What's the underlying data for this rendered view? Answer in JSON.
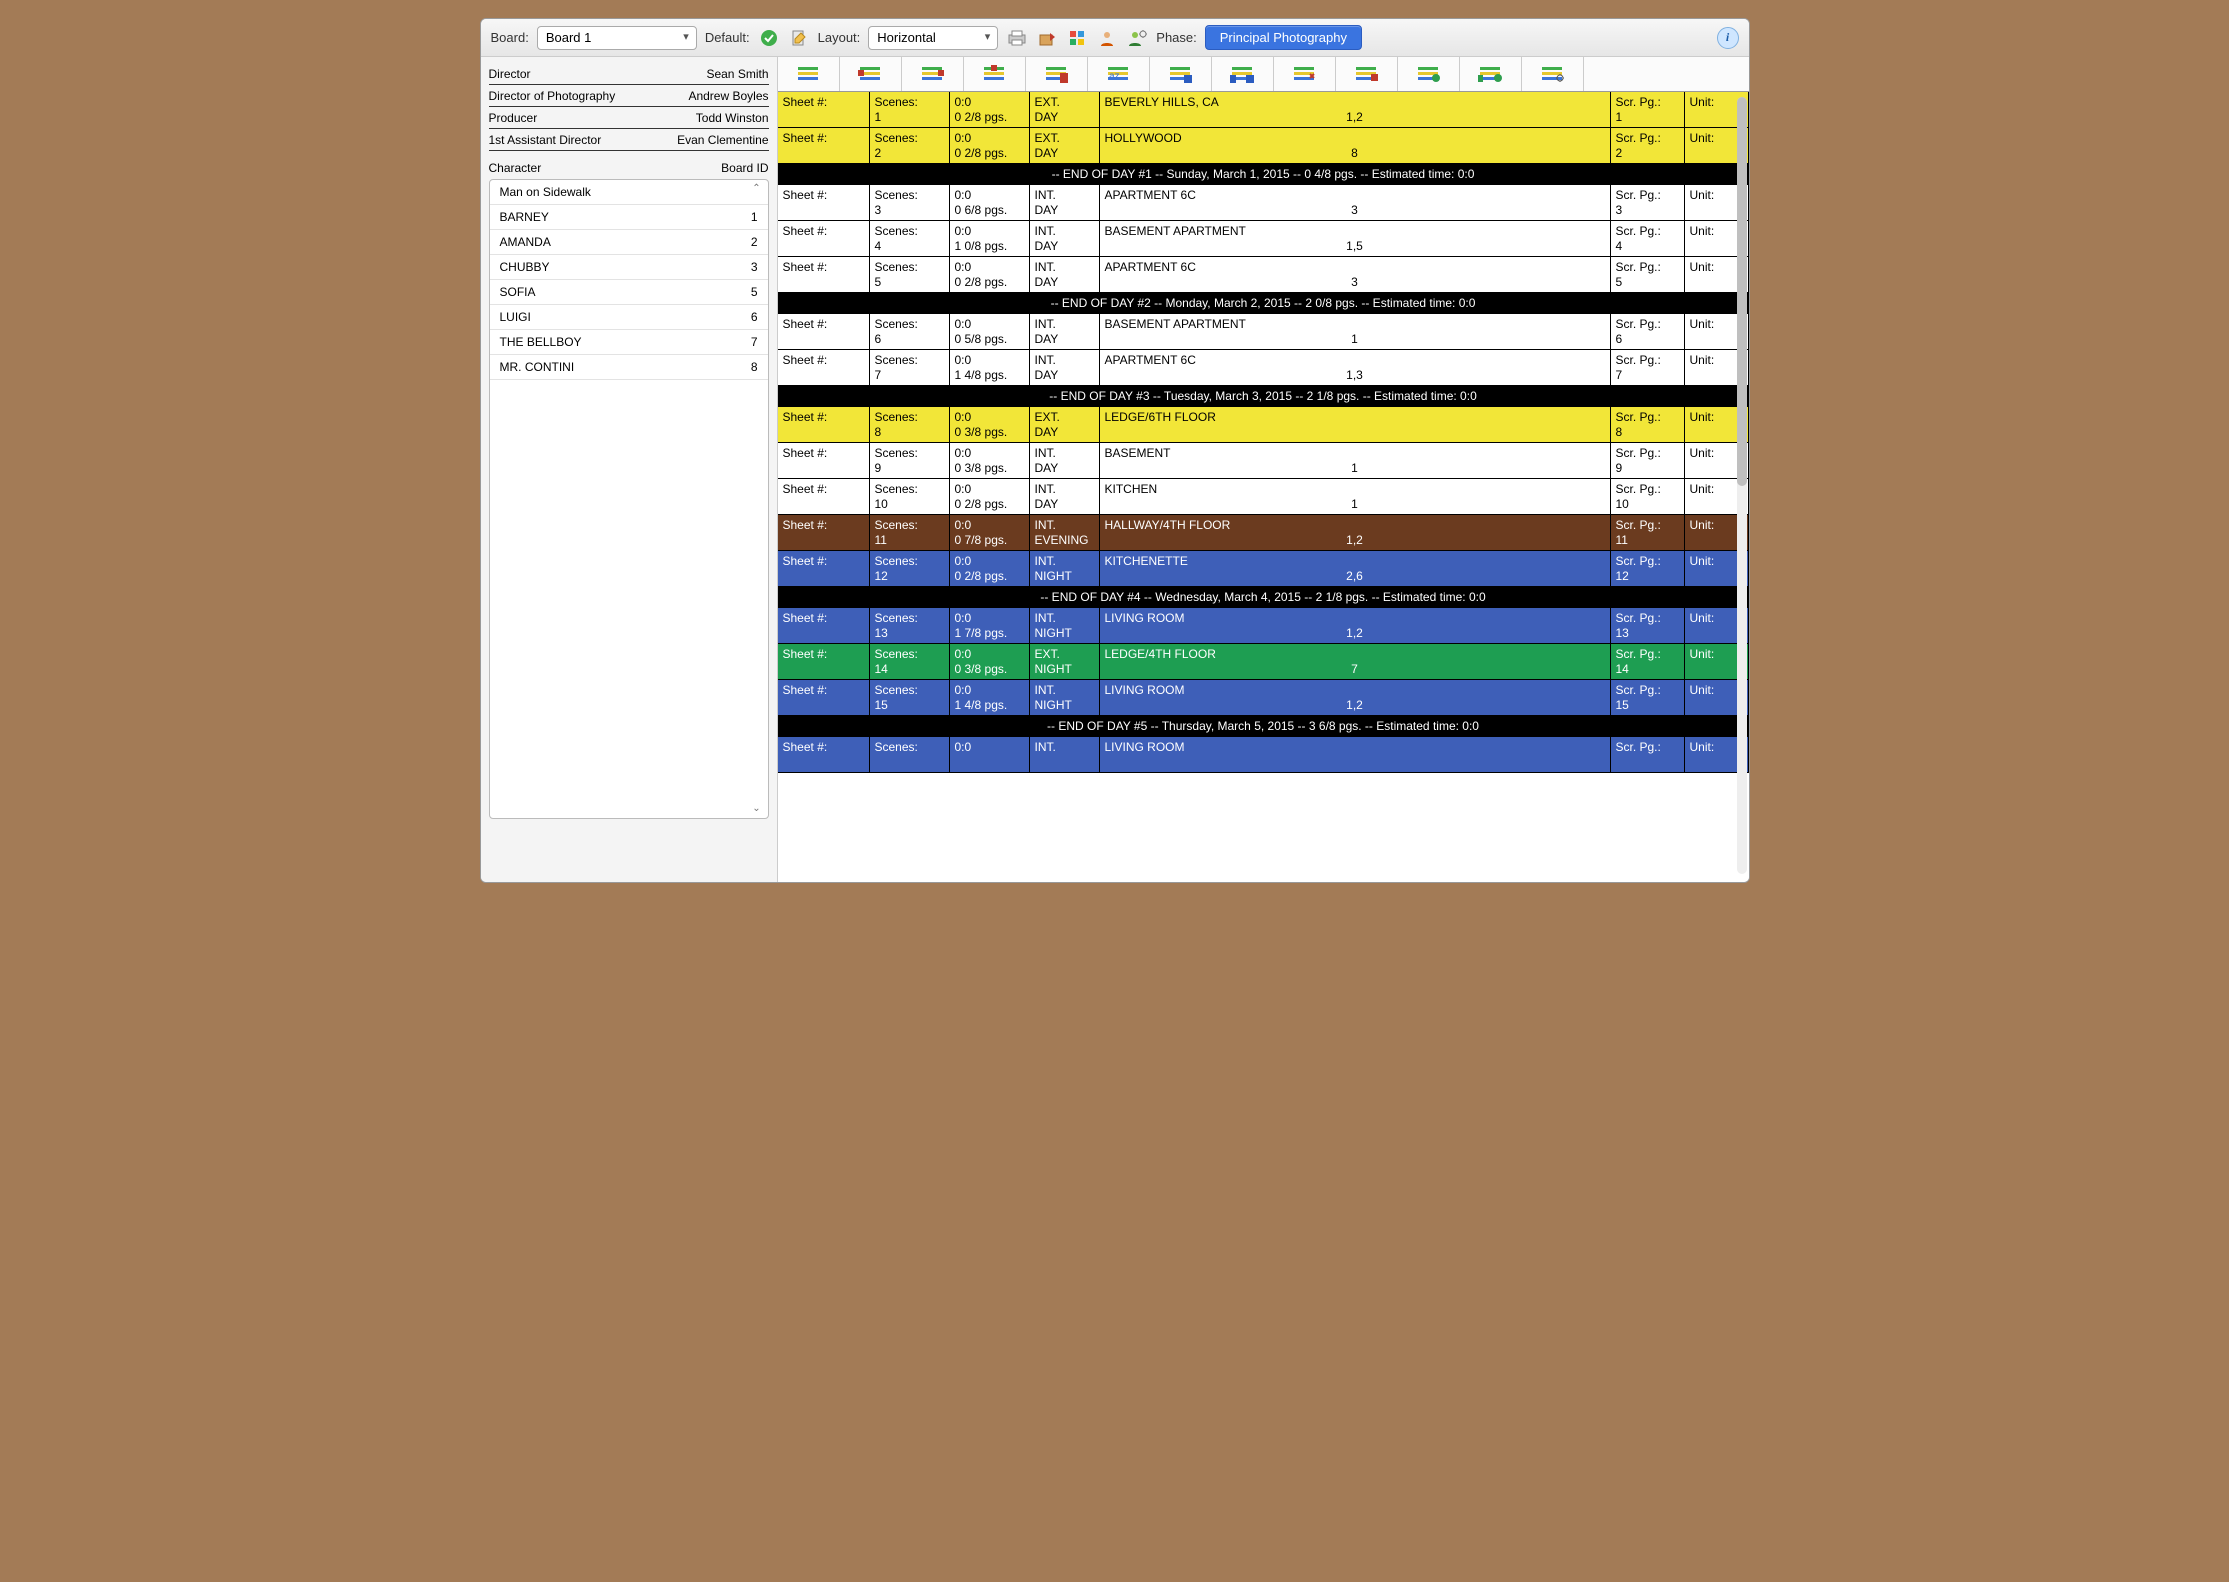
{
  "toolbar": {
    "board_label": "Board:",
    "board_value": "Board 1",
    "default_label": "Default:",
    "layout_label": "Layout:",
    "layout_value": "Horizontal",
    "phase_label": "Phase:",
    "phase_value": "Principal Photography"
  },
  "crew": [
    {
      "role": "Director",
      "name": "Sean Smith"
    },
    {
      "role": "Director of Photography",
      "name": "Andrew Boyles"
    },
    {
      "role": "Producer",
      "name": "Todd Winston"
    },
    {
      "role": "1st Assistant Director",
      "name": "Evan Clementine"
    }
  ],
  "char_header_left": "Character",
  "char_header_right": "Board ID",
  "characters": [
    {
      "name": "Man on Sidewalk",
      "id": ""
    },
    {
      "name": "BARNEY",
      "id": "1"
    },
    {
      "name": "AMANDA",
      "id": "2"
    },
    {
      "name": "CHUBBY",
      "id": "3"
    },
    {
      "name": "SOFIA",
      "id": "5"
    },
    {
      "name": "LUIGI",
      "id": "6"
    },
    {
      "name": "THE BELLBOY",
      "id": "7"
    },
    {
      "name": "MR. CONTINI",
      "id": "8"
    }
  ],
  "labels": {
    "sheet": "Sheet #:",
    "scenes": "Scenes:",
    "pages_top": "0:0",
    "scr": "Scr. Pg.:",
    "unit": "Unit:"
  },
  "colors": {
    "yellow": "#f2e638",
    "white": "#ffffff",
    "brown": "#6b3b1f",
    "blue": "#3e5fb8",
    "green": "#1e9e52",
    "black": "#000000"
  },
  "strips": [
    {
      "type": "strip",
      "color": "yellow",
      "scene": "1",
      "pages": "0 2/8 pgs.",
      "ie": "EXT.",
      "tod": "DAY",
      "loc": "BEVERLY HILLS, CA",
      "cast": "1,2",
      "scr": "1"
    },
    {
      "type": "strip",
      "color": "yellow",
      "scene": "2",
      "pages": "0 2/8 pgs.",
      "ie": "EXT.",
      "tod": "DAY",
      "loc": "HOLLYWOOD",
      "cast": "8",
      "scr": "2"
    },
    {
      "type": "break",
      "text": "-- END OF DAY #1 -- Sunday, March 1, 2015 -- 0 4/8 pgs. -- Estimated time: 0:0"
    },
    {
      "type": "strip",
      "color": "white",
      "scene": "3",
      "pages": "0 6/8 pgs.",
      "ie": "INT.",
      "tod": "DAY",
      "loc": "APARTMENT 6C",
      "cast": "3",
      "scr": "3"
    },
    {
      "type": "strip",
      "color": "white",
      "scene": "4",
      "pages": "1 0/8 pgs.",
      "ie": "INT.",
      "tod": "DAY",
      "loc": "BASEMENT APARTMENT",
      "cast": "1,5",
      "scr": "4"
    },
    {
      "type": "strip",
      "color": "white",
      "scene": "5",
      "pages": "0 2/8 pgs.",
      "ie": "INT.",
      "tod": "DAY",
      "loc": "APARTMENT 6C",
      "cast": "3",
      "scr": "5"
    },
    {
      "type": "break",
      "text": "-- END OF DAY #2 -- Monday, March 2, 2015 -- 2 0/8 pgs. -- Estimated time: 0:0"
    },
    {
      "type": "strip",
      "color": "white",
      "scene": "6",
      "pages": "0 5/8 pgs.",
      "ie": "INT.",
      "tod": "DAY",
      "loc": "BASEMENT APARTMENT",
      "cast": "1",
      "scr": "6"
    },
    {
      "type": "strip",
      "color": "white",
      "scene": "7",
      "pages": "1 4/8 pgs.",
      "ie": "INT.",
      "tod": "DAY",
      "loc": "APARTMENT 6C",
      "cast": "1,3",
      "scr": "7"
    },
    {
      "type": "break",
      "text": "-- END OF DAY #3 -- Tuesday, March 3, 2015 -- 2 1/8 pgs. -- Estimated time: 0:0"
    },
    {
      "type": "strip",
      "color": "yellow",
      "scene": "8",
      "pages": "0 3/8 pgs.",
      "ie": "EXT.",
      "tod": "DAY",
      "loc": "LEDGE/6TH FLOOR",
      "cast": "",
      "scr": "8"
    },
    {
      "type": "strip",
      "color": "white",
      "scene": "9",
      "pages": "0 3/8 pgs.",
      "ie": "INT.",
      "tod": "DAY",
      "loc": "BASEMENT",
      "cast": "1",
      "scr": "9"
    },
    {
      "type": "strip",
      "color": "white",
      "scene": "10",
      "pages": "0 2/8 pgs.",
      "ie": "INT.",
      "tod": "DAY",
      "loc": "KITCHEN",
      "cast": "1",
      "scr": "10"
    },
    {
      "type": "strip",
      "color": "brown",
      "scene": "11",
      "pages": "0 7/8 pgs.",
      "ie": "INT.",
      "tod": "EVENING",
      "loc": "HALLWAY/4TH FLOOR",
      "cast": "1,2",
      "scr": "11"
    },
    {
      "type": "strip",
      "color": "blue",
      "scene": "12",
      "pages": "0 2/8 pgs.",
      "ie": "INT.",
      "tod": "NIGHT",
      "loc": "KITCHENETTE",
      "cast": "2,6",
      "scr": "12"
    },
    {
      "type": "break",
      "text": "-- END OF DAY #4 -- Wednesday, March 4, 2015 -- 2 1/8 pgs. -- Estimated time: 0:0"
    },
    {
      "type": "strip",
      "color": "blue",
      "scene": "13",
      "pages": "1 7/8 pgs.",
      "ie": "INT.",
      "tod": "NIGHT",
      "loc": "LIVING ROOM",
      "cast": "1,2",
      "scr": "13"
    },
    {
      "type": "strip",
      "color": "green",
      "scene": "14",
      "pages": "0 3/8 pgs.",
      "ie": "EXT.",
      "tod": "NIGHT",
      "loc": "LEDGE/4TH FLOOR",
      "cast": "7",
      "scr": "14"
    },
    {
      "type": "strip",
      "color": "blue",
      "scene": "15",
      "pages": "1 4/8 pgs.",
      "ie": "INT.",
      "tod": "NIGHT",
      "loc": "LIVING ROOM",
      "cast": "1,2",
      "scr": "15"
    },
    {
      "type": "break",
      "text": "-- END OF DAY #5 -- Thursday, March 5, 2015 -- 3 6/8 pgs. -- Estimated time: 0:0"
    },
    {
      "type": "strip",
      "color": "blue",
      "scene": "",
      "pages": "",
      "ie": "INT.",
      "tod": "",
      "loc": "LIVING ROOM",
      "cast": "",
      "scr": ""
    }
  ]
}
